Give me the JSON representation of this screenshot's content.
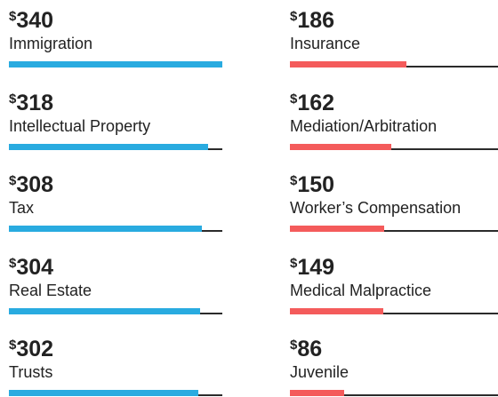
{
  "chart_data": {
    "type": "bar",
    "series": [
      {
        "color": "#29abe0",
        "categories": [
          "Immigration",
          "Intellectual Property",
          "Tax",
          "Real Estate",
          "Trusts"
        ],
        "values": [
          340,
          318,
          308,
          304,
          302
        ],
        "value_labels": [
          "$340",
          "$318",
          "$308",
          "$304",
          "$302"
        ]
      },
      {
        "color": "#f45b5b",
        "categories": [
          "Insurance",
          "Mediation/Arbitration",
          "Worker’s Compensation",
          "Medical Malpractice",
          "Juvenile"
        ],
        "values": [
          186,
          162,
          150,
          149,
          86
        ],
        "value_labels": [
          "$186",
          "$162",
          "$150",
          "$149",
          "$86"
        ]
      }
    ]
  }
}
